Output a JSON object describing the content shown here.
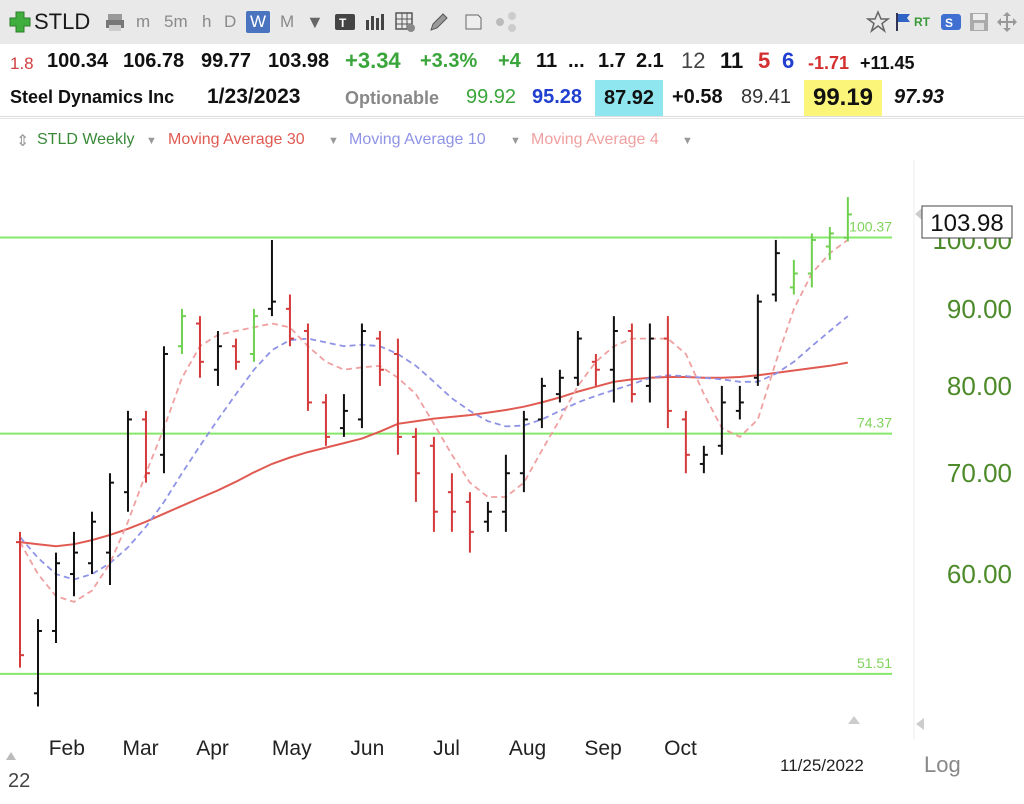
{
  "toolbar": {
    "symbol": "STLD",
    "intervals": [
      "m",
      "5m",
      "h",
      "D",
      "W",
      "M"
    ],
    "selected_interval": "W",
    "flags": "RT"
  },
  "quote_row1": {
    "v0": "1.8",
    "open": "100.34",
    "high": "106.78",
    "low": "99.77",
    "close": "103.98",
    "change": "+3.34",
    "change_pct": "+3.3%",
    "v1": "+4",
    "v2": "11",
    "ellipsis": "...",
    "v3": "1.7",
    "v4": "2.1",
    "v5": "12",
    "v6": "11",
    "v7": "5",
    "v8": "6",
    "v9": "-1.71",
    "v10": "+11.45"
  },
  "quote_row2": {
    "company": "Steel Dynamics Inc",
    "date": "1/23/2023",
    "optionable": "Optionable",
    "w1": "99.92",
    "w2": "95.28",
    "w3": "87.92",
    "w4": "+0.58",
    "w5": "89.41",
    "w6": "99.19",
    "w7": "97.93"
  },
  "legend": {
    "series1": "STLD Weekly",
    "series2": "Moving Average 30",
    "series3": "Moving Average 10",
    "series4": "Moving Average 4"
  },
  "chart_data": {
    "type": "line",
    "x_labels": [
      "Feb",
      "Mar",
      "Apr",
      "May",
      "Jun",
      "Jul",
      "Aug",
      "Sep",
      "Oct"
    ],
    "y_ticks": [
      "100.00",
      "90.00",
      "80.00",
      "70.00",
      "60.00"
    ],
    "y_tick_values": [
      100,
      90,
      80,
      70,
      60
    ],
    "ylim": [
      48,
      113
    ],
    "last_price_label": "103.98",
    "levels": [
      {
        "value": 100.37,
        "label": "100.37"
      },
      {
        "value": 74.37,
        "label": "74.37"
      },
      {
        "value": 51.51,
        "label": "51.51"
      }
    ],
    "date_label": "11/25/2022",
    "year_label": "22",
    "scale_label": "Log",
    "bars": [
      {
        "h": 64,
        "l": 52,
        "o": 63,
        "c": 53,
        "u": false
      },
      {
        "h": 56,
        "l": 49,
        "o": 50,
        "c": 55,
        "u": true
      },
      {
        "h": 62,
        "l": 54,
        "o": 55,
        "c": 61,
        "u": true
      },
      {
        "h": 64,
        "l": 58,
        "o": 60,
        "c": 62,
        "u": true
      },
      {
        "h": 66,
        "l": 60,
        "o": 61,
        "c": 65,
        "u": true
      },
      {
        "h": 70,
        "l": 59,
        "o": 62,
        "c": 69,
        "u": true
      },
      {
        "h": 77,
        "l": 66,
        "o": 68,
        "c": 76,
        "u": true
      },
      {
        "h": 77,
        "l": 69,
        "o": 76,
        "c": 70,
        "u": false
      },
      {
        "h": 85,
        "l": 70,
        "o": 72,
        "c": 84,
        "u": true
      },
      {
        "h": 90,
        "l": 84,
        "o": 85,
        "c": 89,
        "u": true
      },
      {
        "h": 89,
        "l": 81,
        "o": 88,
        "c": 83,
        "u": false
      },
      {
        "h": 87,
        "l": 80,
        "o": 82,
        "c": 85,
        "u": true
      },
      {
        "h": 86,
        "l": 82,
        "o": 85,
        "c": 83,
        "u": false
      },
      {
        "h": 90,
        "l": 83,
        "o": 84,
        "c": 89,
        "u": true
      },
      {
        "h": 100,
        "l": 89,
        "o": 90,
        "c": 91,
        "u": true
      },
      {
        "h": 92,
        "l": 85,
        "o": 90,
        "c": 86,
        "u": false
      },
      {
        "h": 88,
        "l": 77,
        "o": 87,
        "c": 78,
        "u": false
      },
      {
        "h": 79,
        "l": 73,
        "o": 78,
        "c": 74,
        "u": false
      },
      {
        "h": 79,
        "l": 74,
        "o": 75,
        "c": 77,
        "u": true
      },
      {
        "h": 88,
        "l": 75,
        "o": 76,
        "c": 87,
        "u": true
      },
      {
        "h": 87,
        "l": 80,
        "o": 86,
        "c": 82,
        "u": false
      },
      {
        "h": 86,
        "l": 72,
        "o": 84,
        "c": 74,
        "u": false
      },
      {
        "h": 75,
        "l": 67,
        "o": 74,
        "c": 70,
        "u": false
      },
      {
        "h": 74,
        "l": 64,
        "o": 73,
        "c": 66,
        "u": false
      },
      {
        "h": 70,
        "l": 64,
        "o": 68,
        "c": 66,
        "u": false
      },
      {
        "h": 68,
        "l": 62,
        "o": 67,
        "c": 64,
        "u": false
      },
      {
        "h": 67,
        "l": 64,
        "o": 65,
        "c": 66,
        "u": true
      },
      {
        "h": 72,
        "l": 64,
        "o": 66,
        "c": 70,
        "u": true
      },
      {
        "h": 77,
        "l": 68,
        "o": 70,
        "c": 76,
        "u": true
      },
      {
        "h": 81,
        "l": 75,
        "o": 76,
        "c": 80,
        "u": true
      },
      {
        "h": 82,
        "l": 78,
        "o": 79,
        "c": 81,
        "u": true
      },
      {
        "h": 87,
        "l": 80,
        "o": 81,
        "c": 86,
        "u": true
      },
      {
        "h": 84,
        "l": 80,
        "o": 83,
        "c": 82,
        "u": false
      },
      {
        "h": 89,
        "l": 78,
        "o": 82,
        "c": 87,
        "u": true
      },
      {
        "h": 88,
        "l": 78,
        "o": 87,
        "c": 79,
        "u": false
      },
      {
        "h": 88,
        "l": 78,
        "o": 80,
        "c": 86,
        "u": true
      },
      {
        "h": 89,
        "l": 75,
        "o": 86,
        "c": 77,
        "u": false
      },
      {
        "h": 77,
        "l": 70,
        "o": 76,
        "c": 72,
        "u": false
      },
      {
        "h": 73,
        "l": 70,
        "o": 71,
        "c": 72,
        "u": true
      },
      {
        "h": 80,
        "l": 72,
        "o": 73,
        "c": 78,
        "u": true
      },
      {
        "h": 80,
        "l": 76,
        "o": 77,
        "c": 78,
        "u": true
      },
      {
        "h": 92,
        "l": 80,
        "o": 81,
        "c": 91,
        "u": true
      },
      {
        "h": 100,
        "l": 91,
        "o": 92,
        "c": 98,
        "u": true
      },
      {
        "h": 97,
        "l": 92,
        "o": 93,
        "c": 95,
        "u": true
      },
      {
        "h": 101,
        "l": 93,
        "o": 95,
        "c": 100,
        "u": true
      },
      {
        "h": 102,
        "l": 97,
        "o": 99,
        "c": 101,
        "u": true
      },
      {
        "h": 106.78,
        "l": 99.77,
        "o": 100.34,
        "c": 103.98,
        "u": true
      }
    ],
    "series": [
      {
        "name": "Moving Average 30",
        "color": "#e05a52",
        "values": [
          63,
          62.8,
          62.6,
          62.8,
          63.2,
          63.7,
          64.3,
          65.0,
          65.8,
          66.6,
          67.4,
          68.2,
          69.1,
          70.1,
          71.0,
          71.7,
          72.3,
          72.8,
          73.3,
          73.8,
          74.6,
          75.5,
          75.8,
          76.1,
          76.3,
          76.5,
          76.8,
          77.1,
          77.5,
          78.0,
          78.6,
          79.3,
          79.9,
          80.5,
          80.8,
          81.0,
          81.1,
          81.1,
          81.0,
          81.0,
          81.1,
          81.3,
          81.6,
          81.9,
          82.2,
          82.5,
          82.9
        ]
      },
      {
        "name": "Moving Average 10",
        "color": "#8f93e6",
        "values": [
          63.5,
          61.5,
          60,
          59.5,
          60,
          61,
          62.5,
          64.5,
          67,
          70,
          73,
          76,
          79,
          82,
          84.5,
          85.8,
          86,
          85.5,
          85,
          85.2,
          85,
          84,
          82.5,
          80.5,
          78.5,
          77,
          75.8,
          75.2,
          75.3,
          76,
          77,
          78,
          78.8,
          79.5,
          80.2,
          81,
          81.3,
          81.2,
          81,
          80.8,
          80.5,
          80.5,
          81.5,
          83,
          85,
          87,
          89
        ]
      },
      {
        "name": "Moving Average 4",
        "color": "#f0a0a0",
        "values": [
          63,
          60,
          58,
          57.5,
          58.5,
          61,
          65,
          70,
          75,
          81,
          85,
          86.5,
          87,
          87.5,
          88,
          87.5,
          85,
          83,
          82,
          82.3,
          82.5,
          81,
          79,
          75.5,
          72,
          69,
          67.5,
          67.5,
          69,
          72.5,
          76,
          80,
          83,
          85,
          86,
          86,
          86,
          84,
          79,
          75,
          74,
          76,
          83,
          90,
          95,
          98,
          100
        ]
      }
    ]
  }
}
